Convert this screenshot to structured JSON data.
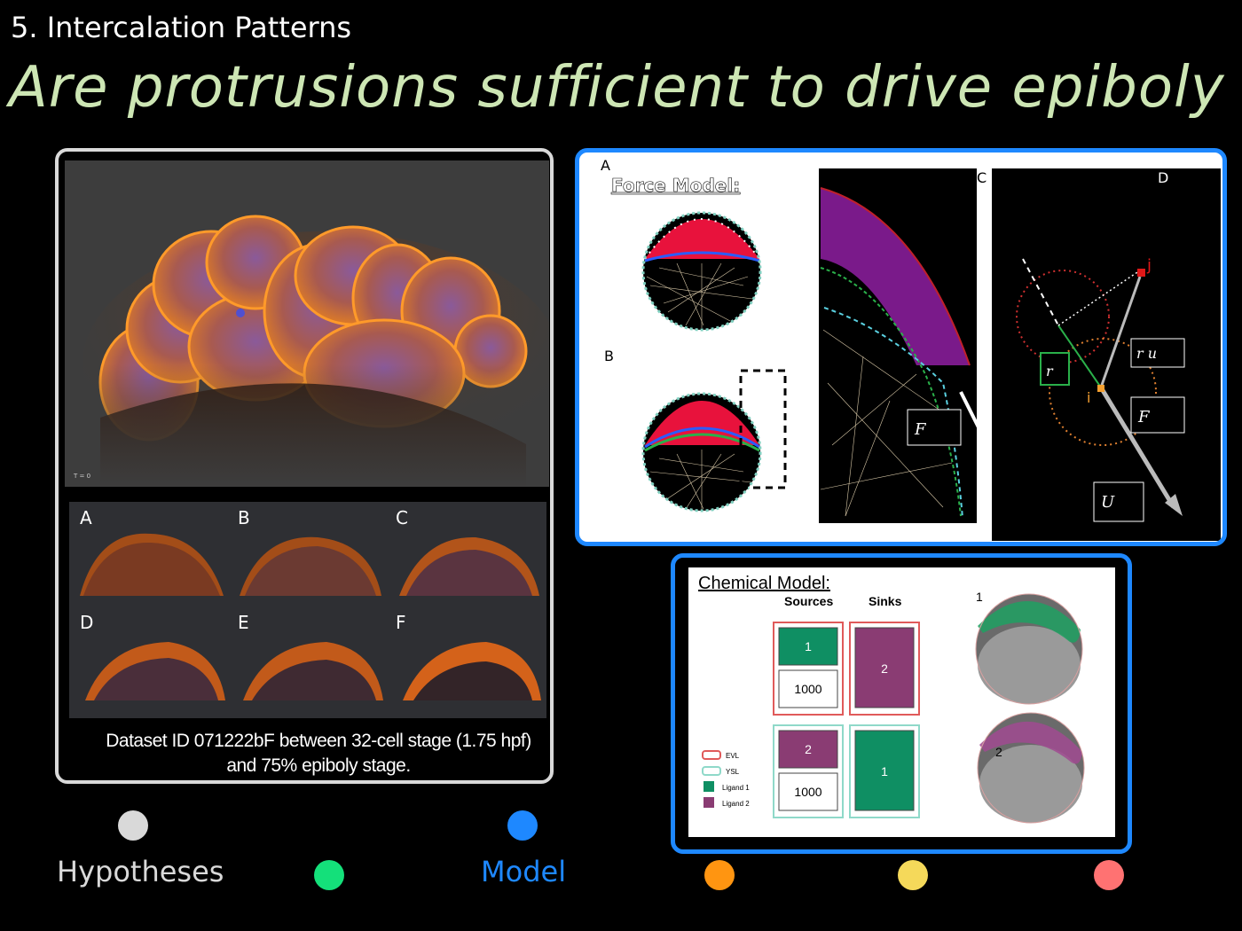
{
  "section_title": "5. Intercalation Patterns",
  "main_title": "Are protrusions sufficient to drive epiboly ?",
  "left_panel": {
    "main_image_timestamp": "T = 0",
    "thumbnails": [
      {
        "label": "A"
      },
      {
        "label": "B"
      },
      {
        "label": "C"
      },
      {
        "label": "D"
      },
      {
        "label": "E"
      },
      {
        "label": "F"
      }
    ],
    "caption_line1": "Dataset ID 071222bF between 32-cell stage (1.75 hpf)",
    "caption_line2": "and 75% epiboly stage."
  },
  "force_model": {
    "title": "Force Model:",
    "panel_labels": {
      "a": "A",
      "b": "B",
      "c": "C",
      "d": "D"
    },
    "node_i": "i",
    "node_j": "j"
  },
  "chemical_model": {
    "title": "Chemical Model:",
    "sources_header": "Sources",
    "sinks_header": "Sinks",
    "row1": {
      "source_top": "1",
      "source_bottom": "1000",
      "sink": "2"
    },
    "row2": {
      "source_top": "2",
      "source_bottom": "1000",
      "sink": "1"
    },
    "legend": [
      {
        "label": "EVL",
        "color": "#e05a5a"
      },
      {
        "label": "YSL",
        "color": "#8fd9c9"
      },
      {
        "label": "Ligand 1",
        "color": "#0f8f63"
      },
      {
        "label": "Ligand 2",
        "color": "#8a3c73"
      }
    ],
    "embryo_labels": [
      "1",
      "2"
    ]
  },
  "nav": {
    "hypotheses": "Hypotheses",
    "model": "Model",
    "colors": {
      "hypotheses": "#d9d9d9",
      "green": "#14e07a",
      "model": "#1e88ff",
      "orange": "#ff9511",
      "yellow": "#f5d95a",
      "red": "#ff7272"
    }
  }
}
